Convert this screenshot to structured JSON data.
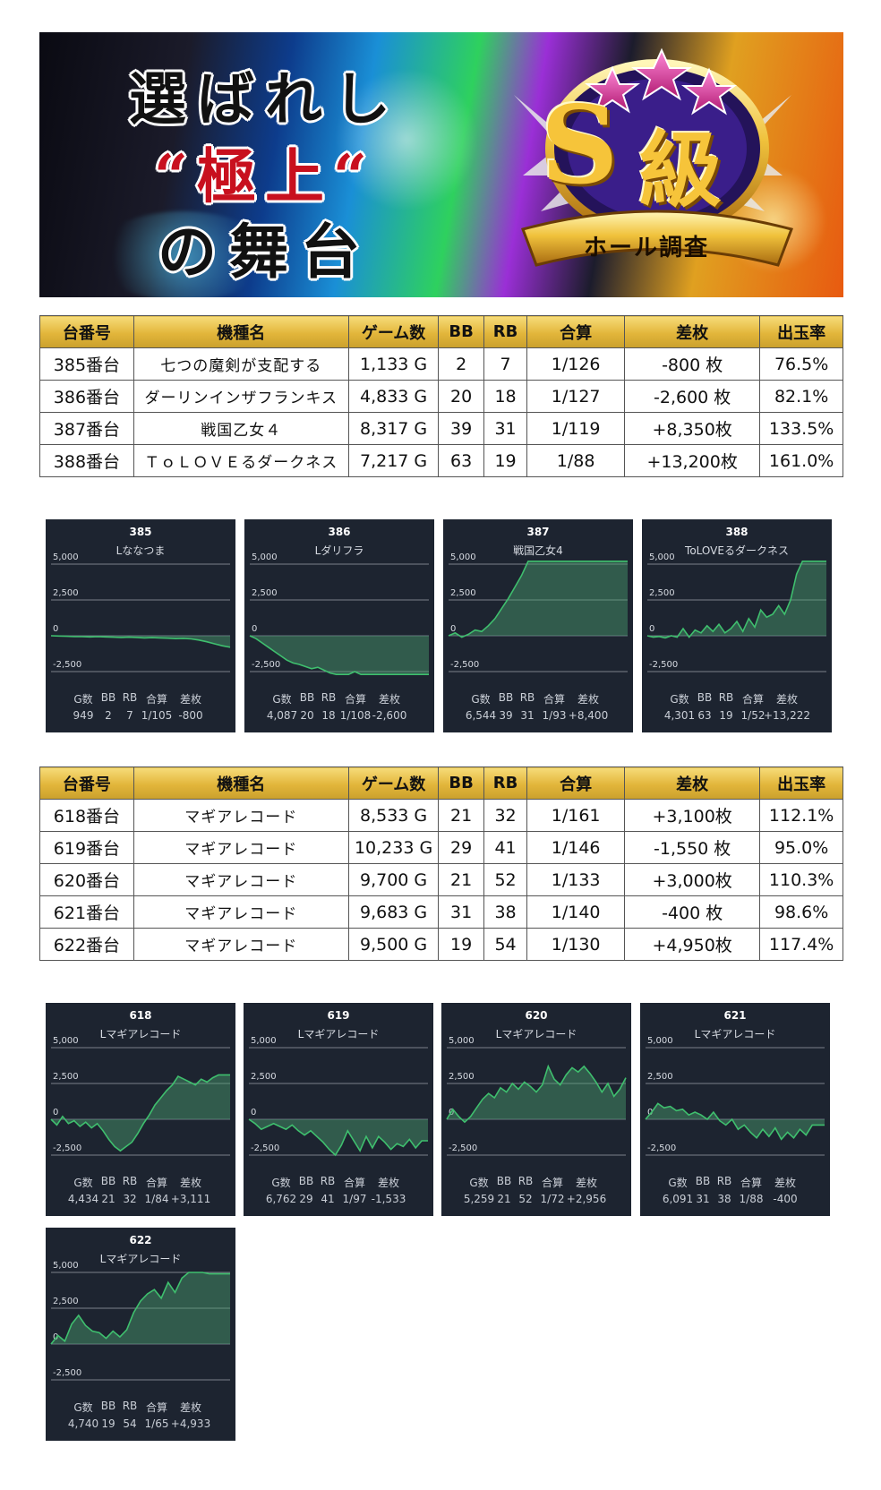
{
  "banner": {
    "line1": "選ばれし",
    "line2": "“極上“",
    "line3": "の舞台",
    "emblem_letter": "S",
    "emblem_kanji": "級",
    "emblem_ribbon": "ホール調査"
  },
  "headers": [
    "台番号",
    "機種名",
    "ゲーム数",
    "BB",
    "RB",
    "合算",
    "差枚",
    "出玉率"
  ],
  "table1": [
    {
      "no": "385番台",
      "name": "七つの魔剣が支配する",
      "games": "1,133 G",
      "bb": "2",
      "rb": "7",
      "total": "1/126",
      "diff": "-800 枚",
      "sign": "neg",
      "rate": "76.5%"
    },
    {
      "no": "386番台",
      "name": "ダーリンインザフランキス",
      "games": "4,833 G",
      "bb": "20",
      "rb": "18",
      "total": "1/127",
      "diff": "-2,600 枚",
      "sign": "neg",
      "rate": "82.1%"
    },
    {
      "no": "387番台",
      "name": "戦国乙女４",
      "games": "8,317 G",
      "bb": "39",
      "rb": "31",
      "total": "1/119",
      "diff": "+8,350枚",
      "sign": "pos",
      "rate": "133.5%"
    },
    {
      "no": "388番台",
      "name": "ＴｏＬＯＶＥるダークネス",
      "games": "7,217 G",
      "bb": "63",
      "rb": "19",
      "total": "1/88",
      "diff": "+13,200枚",
      "sign": "pos",
      "rate": "161.0%"
    }
  ],
  "table2": [
    {
      "no": "618番台",
      "name": "マギアレコード",
      "games": "8,533 G",
      "bb": "21",
      "rb": "32",
      "total": "1/161",
      "diff": "+3,100枚",
      "sign": "pos",
      "rate": "112.1%"
    },
    {
      "no": "619番台",
      "name": "マギアレコード",
      "games": "10,233 G",
      "bb": "29",
      "rb": "41",
      "total": "1/146",
      "diff": "-1,550 枚",
      "sign": "neg",
      "rate": "95.0%"
    },
    {
      "no": "620番台",
      "name": "マギアレコード",
      "games": "9,700 G",
      "bb": "21",
      "rb": "52",
      "total": "1/133",
      "diff": "+3,000枚",
      "sign": "pos",
      "rate": "110.3%"
    },
    {
      "no": "621番台",
      "name": "マギアレコード",
      "games": "9,683 G",
      "bb": "31",
      "rb": "38",
      "total": "1/140",
      "diff": "-400 枚",
      "sign": "neg",
      "rate": "98.6%"
    },
    {
      "no": "622番台",
      "name": "マギアレコード",
      "games": "9,500 G",
      "bb": "19",
      "rb": "54",
      "total": "1/130",
      "diff": "+4,950枚",
      "sign": "pos",
      "rate": "117.4%"
    }
  ],
  "stat_headers": [
    "G数",
    "BB",
    "RB",
    "合算",
    "差枚"
  ],
  "y_ticks": [
    "5,000",
    "2,500",
    "0",
    "-2,500"
  ],
  "colors": {
    "negative": "#d40000",
    "positive": "#1d2db8",
    "card_bg": "#1d2430",
    "line": "#3fbf6e",
    "header_gold": "#e2b53a"
  },
  "chart_data": [
    {
      "type": "area",
      "number": "385",
      "title": "Lななつま",
      "ylim": [
        -2500,
        5000
      ],
      "y_ticks": [
        5000,
        2500,
        0,
        -2500
      ],
      "values": [
        0,
        -20,
        -40,
        -60,
        -60,
        -80,
        -60,
        -80,
        -100,
        -120,
        -100,
        -120,
        -150,
        -130,
        -150,
        -170,
        -200,
        -180,
        -220,
        -300,
        -420,
        -560,
        -700,
        -800
      ],
      "stats": [
        "949",
        "2",
        "7",
        "1/105",
        "-800"
      ]
    },
    {
      "type": "area",
      "number": "386",
      "title": "Lダリフラ",
      "ylim": [
        -2500,
        5000
      ],
      "y_ticks": [
        5000,
        2500,
        0,
        -2500
      ],
      "values": [
        0,
        -200,
        -500,
        -800,
        -1100,
        -1400,
        -1700,
        -1900,
        -2000,
        -2150,
        -2300,
        -2200,
        -2400,
        -2600,
        -2700,
        -2700,
        -2700,
        -2500,
        -2700,
        -2700,
        -2700,
        -2700,
        -2700,
        -2700,
        -2700,
        -2700,
        -2700,
        -2700,
        -2700,
        -2700
      ],
      "stats": [
        "4,087",
        "20",
        "18",
        "1/108",
        "-2,600"
      ]
    },
    {
      "type": "area",
      "number": "387",
      "title": "戦国乙女4",
      "ylim": [
        -2500,
        5000
      ],
      "y_ticks": [
        5000,
        2500,
        0,
        -2500
      ],
      "values": [
        0,
        200,
        -100,
        100,
        400,
        300,
        700,
        1200,
        1900,
        2600,
        3400,
        4200,
        5200,
        5200,
        5200,
        5200,
        5200,
        5200,
        5200,
        5200,
        5200,
        5200,
        5200,
        5200,
        5200,
        5200,
        5200,
        5200
      ],
      "stats": [
        "6,544",
        "39",
        "31",
        "1/93",
        "+8,400"
      ]
    },
    {
      "type": "area",
      "number": "388",
      "title": "ToLOVEるダークネス",
      "ylim": [
        -2500,
        5000
      ],
      "y_ticks": [
        5000,
        2500,
        0,
        -2500
      ],
      "values": [
        0,
        -100,
        -50,
        -150,
        0,
        -100,
        500,
        -100,
        400,
        200,
        700,
        300,
        800,
        200,
        500,
        1000,
        300,
        1200,
        600,
        1800,
        1300,
        1500,
        2100,
        1500,
        2500,
        4300,
        5200,
        5200,
        5200,
        5200,
        5200
      ],
      "stats": [
        "4,301",
        "63",
        "19",
        "1/52",
        "+13,222"
      ]
    },
    {
      "type": "area",
      "number": "618",
      "title": "Lマギアレコード",
      "ylim": [
        -2500,
        5000
      ],
      "y_ticks": [
        5000,
        2500,
        0,
        -2500
      ],
      "values": [
        0,
        -400,
        200,
        -300,
        -100,
        -500,
        -200,
        -600,
        -300,
        -800,
        -1400,
        -1900,
        -2200,
        -1900,
        -1600,
        -1000,
        -300,
        300,
        1000,
        1500,
        2000,
        2400,
        3000,
        2800,
        2600,
        2400,
        2800,
        2600,
        2900,
        3100,
        3100,
        3100
      ],
      "stats": [
        "4,434",
        "21",
        "32",
        "1/84",
        "+3,111"
      ]
    },
    {
      "type": "area",
      "number": "619",
      "title": "Lマギアレコード",
      "ylim": [
        -2500,
        5000
      ],
      "y_ticks": [
        5000,
        2500,
        0,
        -2500
      ],
      "values": [
        0,
        -300,
        -700,
        -500,
        -300,
        -500,
        -700,
        -400,
        -800,
        -1100,
        -800,
        -1200,
        -1600,
        -2100,
        -2500,
        -1800,
        -800,
        -1500,
        -2200,
        -1200,
        -2000,
        -1200,
        -1600,
        -2100,
        -1700,
        -1900,
        -1400,
        -2000,
        -1500,
        -1500
      ],
      "stats": [
        "6,762",
        "29",
        "41",
        "1/97",
        "-1,533"
      ]
    },
    {
      "type": "area",
      "number": "620",
      "title": "Lマギアレコード",
      "ylim": [
        -2500,
        5000
      ],
      "y_ticks": [
        5000,
        2500,
        0,
        -2500
      ],
      "values": [
        0,
        700,
        200,
        -200,
        200,
        800,
        1400,
        1800,
        1500,
        2200,
        1900,
        2500,
        2100,
        2600,
        2300,
        1900,
        2400,
        3700,
        2800,
        2400,
        3100,
        3600,
        3300,
        3700,
        3200,
        2600,
        1900,
        2500,
        1600,
        2100,
        2900
      ],
      "stats": [
        "5,259",
        "21",
        "52",
        "1/72",
        "+2,956"
      ]
    },
    {
      "type": "area",
      "number": "621",
      "title": "Lマギアレコード",
      "ylim": [
        -2500,
        5000
      ],
      "y_ticks": [
        5000,
        2500,
        0,
        -2500
      ],
      "values": [
        0,
        500,
        1100,
        800,
        900,
        600,
        700,
        300,
        500,
        300,
        0,
        500,
        -100,
        -400,
        0,
        -700,
        -400,
        -900,
        -1300,
        -700,
        -1200,
        -600,
        -1400,
        -900,
        -1300,
        -700,
        -1100,
        -400,
        -400,
        -400
      ],
      "stats": [
        "6,091",
        "31",
        "38",
        "1/88",
        "-400"
      ]
    },
    {
      "type": "area",
      "number": "622",
      "title": "Lマギアレコード",
      "ylim": [
        -2500,
        5000
      ],
      "y_ticks": [
        5000,
        2500,
        0,
        -2500
      ],
      "values": [
        0,
        600,
        200,
        1400,
        2000,
        1300,
        900,
        800,
        400,
        900,
        500,
        1000,
        2200,
        3000,
        3500,
        3800,
        3200,
        4300,
        3600,
        4600,
        5000,
        5000,
        5000,
        4900,
        4900,
        4900,
        4900
      ],
      "stats": [
        "4,740",
        "19",
        "54",
        "1/65",
        "+4,933"
      ]
    }
  ]
}
